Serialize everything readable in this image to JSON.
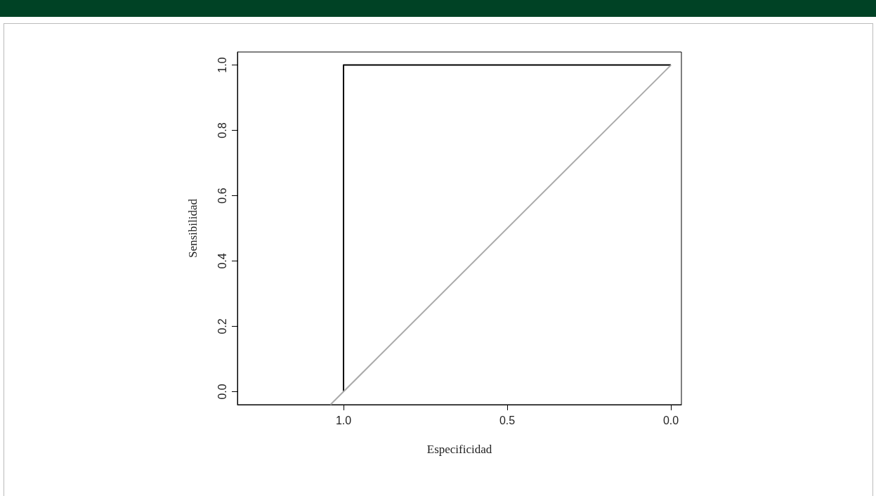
{
  "chart_data": {
    "type": "line",
    "xlabel": "Especificidad",
    "ylabel": "Sensibilidad",
    "xlim": [
      1.324,
      -0.032
    ],
    "xticks": [
      {
        "value": 1,
        "label": "1.0"
      },
      {
        "value": 0.5,
        "label": "0.5"
      },
      {
        "value": 0,
        "label": "0.0"
      }
    ],
    "ylim": [
      -0.04,
      1.04
    ],
    "yticks": [
      {
        "value": 0,
        "label": "0.0"
      },
      {
        "value": 0.2,
        "label": "0.2"
      },
      {
        "value": 0.4,
        "label": "0.4"
      },
      {
        "value": 0.6,
        "label": "0.6"
      },
      {
        "value": 0.8,
        "label": "0.8"
      },
      {
        "value": 1,
        "label": "1.0"
      }
    ],
    "grid": false,
    "marker": "none",
    "line_style": "solid",
    "series": [
      {
        "color": "#000000",
        "x": [
          1,
          1,
          0
        ],
        "values": [
          0,
          1,
          1
        ]
      },
      {
        "color": "#aaaaaa",
        "x": [
          1.04,
          0
        ],
        "values": [
          -0.04,
          1
        ]
      }
    ]
  }
}
